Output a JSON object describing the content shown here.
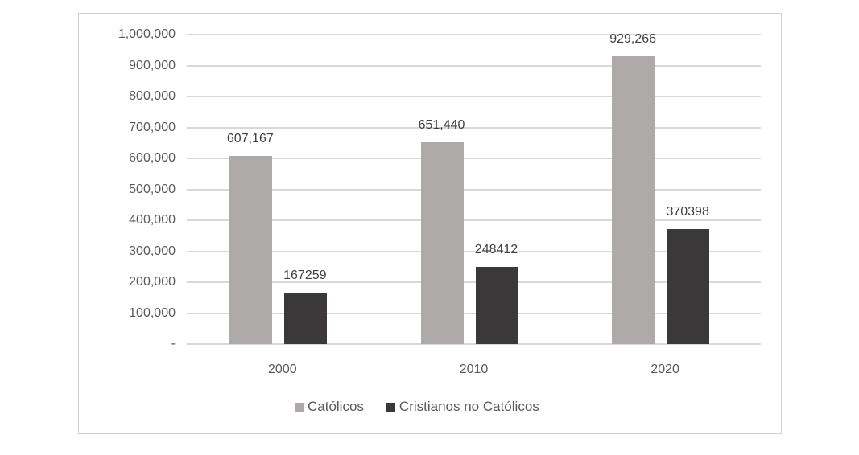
{
  "chart_data": {
    "type": "bar",
    "title": "",
    "xlabel": "",
    "ylabel": "",
    "ylim": [
      0,
      1000000
    ],
    "y_ticks": [
      "-",
      "100,000",
      "200,000",
      "300,000",
      "400,000",
      "500,000",
      "600,000",
      "700,000",
      "800,000",
      "900,000",
      "1,000,000"
    ],
    "categories": [
      "2000",
      "2010",
      "2020"
    ],
    "series": [
      {
        "name": "Católicos",
        "color": "#aeaaaa",
        "values": [
          607167,
          651440,
          929266
        ],
        "labels": [
          "607,167",
          "651,440",
          "929,266"
        ]
      },
      {
        "name": "Cristianos no Católicos",
        "color": "#3a3838",
        "values": [
          167259,
          248412,
          370398
        ],
        "labels": [
          "167259",
          "248412",
          "370398"
        ]
      }
    ],
    "grid": true,
    "legend_position": "bottom"
  }
}
